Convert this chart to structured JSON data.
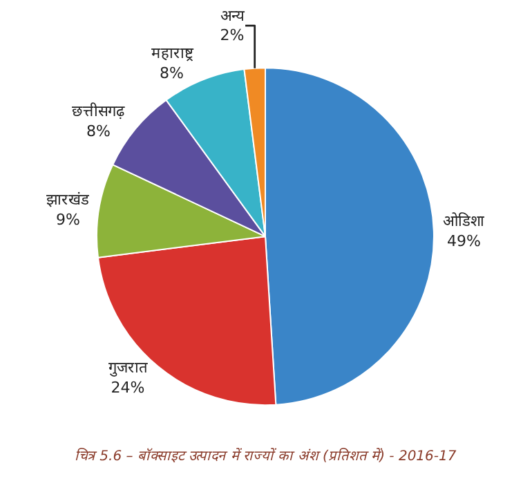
{
  "chart_data": {
    "type": "pie",
    "categories": [
      "ओडिशा",
      "गुजरात",
      "झारखंड",
      "छत्तीसगढ़",
      "महाराष्ट्र",
      "अन्य"
    ],
    "values": [
      49,
      24,
      9,
      8,
      8,
      2
    ],
    "value_labels": [
      "49%",
      "24%",
      "9%",
      "8%",
      "8%",
      "2%"
    ],
    "colors": [
      "#3a85c8",
      "#d9332e",
      "#8db33a",
      "#5b4f9e",
      "#38b3c8",
      "#f08a24"
    ],
    "annotations": [
      "चित्र 5.6 – बॉक्साइट उत्पादन में राज्यों का अंश (प्रतिशत में) - 2016-17"
    ],
    "legend": false
  }
}
